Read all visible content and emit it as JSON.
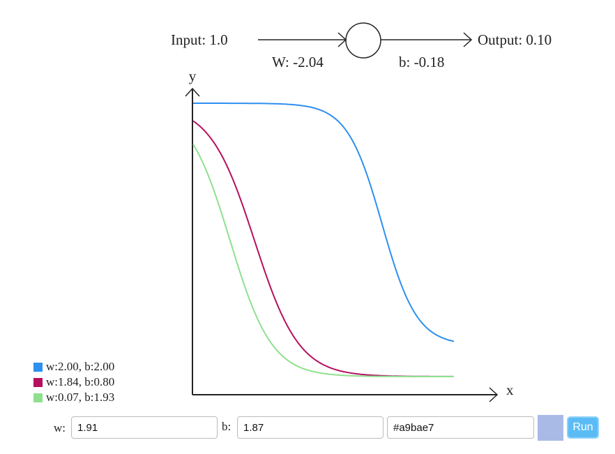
{
  "neuron": {
    "input": "Input: 1.0",
    "weight": "W: -2.04",
    "bias": "b: -0.18",
    "output": "Output:  0.10"
  },
  "plot": {
    "y_label": "y",
    "x_label": "x"
  },
  "legend": [
    {
      "label": "w:2.00, b:2.00",
      "color": "#2d8ff0"
    },
    {
      "label": "w:1.84, b:0.80",
      "color": "#b5105e"
    },
    {
      "label": "w:0.07, b:1.93",
      "color": "#8ee08e"
    }
  ],
  "controls": {
    "w_label": "w:",
    "w_value": "1.91",
    "b_label": "b:",
    "b_value": "1.87",
    "color_value": "#a9bae7",
    "run": "Run"
  }
}
